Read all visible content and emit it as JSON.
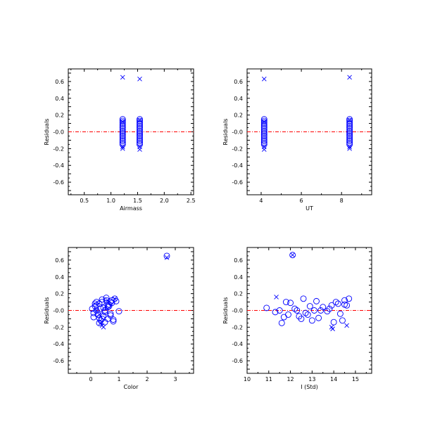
{
  "colors": {
    "points": "#0000ff",
    "zero_line": "#ff0000",
    "axes": "#000000",
    "background": "#ffffff"
  },
  "chart_data": [
    {
      "type": "scatter",
      "xlabel": "Airmass",
      "ylabel": "Residuals",
      "xlim": [
        0.2,
        2.55
      ],
      "ylim": [
        -0.75,
        0.75
      ],
      "xticks": [
        0.5,
        1.0,
        1.5,
        2.0,
        2.5
      ],
      "xtick_labels": [
        "0.5",
        "1.0",
        "1.5",
        "2.0",
        "2.5"
      ],
      "yticks": [
        -0.6,
        -0.4,
        -0.2,
        0.0,
        0.2,
        0.4,
        0.6
      ],
      "ytick_labels": [
        "-0.6",
        "-0.4",
        "-0.2",
        "-0.0",
        "0.2",
        "0.4",
        "0.6"
      ],
      "reference_line_y": 0.0,
      "series": [
        {
          "marker": "circle",
          "x": [
            1.22,
            1.22,
            1.22,
            1.22,
            1.22,
            1.22,
            1.22,
            1.22,
            1.22,
            1.22,
            1.22,
            1.22,
            1.22,
            1.22,
            1.22,
            1.22,
            1.54,
            1.54,
            1.54,
            1.54,
            1.54,
            1.54,
            1.54,
            1.54,
            1.54,
            1.54,
            1.54,
            1.54,
            1.54,
            1.54,
            1.54,
            1.54
          ],
          "y": [
            0.15,
            0.13,
            0.11,
            0.09,
            0.07,
            0.05,
            0.03,
            0.01,
            -0.01,
            -0.03,
            -0.05,
            -0.07,
            -0.09,
            -0.11,
            -0.13,
            -0.15,
            0.15,
            0.13,
            0.11,
            0.09,
            0.07,
            0.05,
            0.03,
            0.01,
            -0.01,
            -0.03,
            -0.05,
            -0.07,
            -0.09,
            -0.11,
            -0.13,
            -0.15
          ]
        },
        {
          "marker": "x",
          "x": [
            1.22,
            1.54,
            1.22,
            1.22,
            1.54,
            1.54,
            1.22,
            1.54
          ],
          "y": [
            0.65,
            0.63,
            -0.18,
            -0.2,
            -0.18,
            -0.21,
            0.12,
            0.14
          ]
        }
      ]
    },
    {
      "type": "scatter",
      "xlabel": "UT",
      "ylabel": "Residuals",
      "xlim": [
        3.3,
        9.5
      ],
      "ylim": [
        -0.75,
        0.75
      ],
      "xticks": [
        4,
        6,
        8
      ],
      "xtick_labels": [
        "4",
        "6",
        "8"
      ],
      "yticks": [
        -0.6,
        -0.4,
        -0.2,
        0.0,
        0.2,
        0.4,
        0.6
      ],
      "ytick_labels": [
        "-0.6",
        "-0.4",
        "-0.2",
        "-0.0",
        "0.2",
        "0.4",
        "0.6"
      ],
      "reference_line_y": 0.0,
      "series": [
        {
          "marker": "circle",
          "x": [
            4.15,
            4.15,
            4.15,
            4.15,
            4.15,
            4.15,
            4.15,
            4.15,
            4.15,
            4.15,
            4.15,
            4.15,
            4.15,
            4.15,
            4.15,
            4.15,
            8.4,
            8.4,
            8.4,
            8.4,
            8.4,
            8.4,
            8.4,
            8.4,
            8.4,
            8.4,
            8.4,
            8.4,
            8.4,
            8.4,
            8.4,
            8.4
          ],
          "y": [
            0.15,
            0.13,
            0.11,
            0.09,
            0.07,
            0.05,
            0.03,
            0.01,
            -0.01,
            -0.03,
            -0.05,
            -0.07,
            -0.09,
            -0.11,
            -0.13,
            -0.15,
            0.15,
            0.13,
            0.11,
            0.09,
            0.07,
            0.05,
            0.03,
            0.01,
            -0.01,
            -0.03,
            -0.05,
            -0.07,
            -0.09,
            -0.11,
            -0.13,
            -0.15
          ]
        },
        {
          "marker": "x",
          "x": [
            4.15,
            8.4,
            4.15,
            4.15,
            8.4,
            8.4,
            4.15,
            8.4
          ],
          "y": [
            0.63,
            0.65,
            -0.18,
            -0.21,
            -0.18,
            -0.2,
            0.12,
            0.14
          ]
        }
      ]
    },
    {
      "type": "scatter",
      "xlabel": "Color",
      "ylabel": "Residuals",
      "xlim": [
        -0.8,
        3.65
      ],
      "ylim": [
        -0.75,
        0.75
      ],
      "xticks": [
        0,
        1,
        2,
        3
      ],
      "xtick_labels": [
        "0",
        "1",
        "2",
        "3"
      ],
      "yticks": [
        -0.6,
        -0.4,
        -0.2,
        0.0,
        0.2,
        0.4,
        0.6
      ],
      "ytick_labels": [
        "-0.6",
        "-0.4",
        "-0.2",
        "-0.0",
        "0.2",
        "0.4",
        "0.6"
      ],
      "reference_line_y": 0.0,
      "series": [
        {
          "marker": "circle",
          "x": [
            0.05,
            0.1,
            0.15,
            0.2,
            0.25,
            0.3,
            0.35,
            0.4,
            0.45,
            0.5,
            0.55,
            0.6,
            0.65,
            0.7,
            0.75,
            0.8,
            0.85,
            0.9,
            1.0,
            0.1,
            0.2,
            0.3,
            0.4,
            0.5,
            0.6,
            0.7,
            0.8,
            0.15,
            0.25,
            0.35,
            0.45,
            0.55,
            0.65,
            0.75,
            0.3,
            0.5,
            0.7,
            0.2,
            0.4,
            0.6,
            2.7
          ],
          "y": [
            0.02,
            -0.08,
            0.05,
            0.0,
            -0.05,
            0.08,
            -0.12,
            0.1,
            0.03,
            -0.02,
            0.12,
            -0.1,
            0.07,
            -0.06,
            0.09,
            -0.13,
            0.14,
            0.11,
            -0.01,
            -0.03,
            0.06,
            -0.09,
            0.13,
            -0.14,
            0.04,
            0.1,
            -0.11,
            0.08,
            -0.05,
            0.02,
            -0.07,
            0.15,
            0.05,
            0.12,
            -0.15,
            0.0,
            -0.04,
            0.1,
            -0.1,
            0.06,
            0.65
          ]
        },
        {
          "marker": "x",
          "x": [
            0.2,
            0.3,
            0.4,
            0.45,
            0.6,
            0.85,
            2.7,
            0.35
          ],
          "y": [
            0.0,
            -0.05,
            -0.18,
            -0.2,
            0.12,
            0.14,
            0.63,
            -0.15
          ]
        }
      ]
    },
    {
      "type": "scatter",
      "xlabel": "I (Std)",
      "ylabel": "Residuals",
      "xlim": [
        10.0,
        15.75
      ],
      "ylim": [
        -0.75,
        0.75
      ],
      "xticks": [
        10,
        11,
        12,
        13,
        14,
        15
      ],
      "xtick_labels": [
        "10",
        "11",
        "12",
        "13",
        "14",
        "15"
      ],
      "yticks": [
        -0.6,
        -0.4,
        -0.2,
        0.0,
        0.2,
        0.4,
        0.6
      ],
      "ytick_labels": [
        "-0.6",
        "-0.4",
        "-0.2",
        "-0.0",
        "0.2",
        "0.4",
        "0.6"
      ],
      "reference_line_y": 0.0,
      "series": [
        {
          "marker": "circle",
          "x": [
            10.9,
            11.3,
            11.5,
            11.6,
            11.8,
            11.9,
            12.0,
            12.2,
            12.4,
            12.5,
            12.6,
            12.7,
            12.9,
            13.0,
            13.1,
            13.2,
            13.3,
            13.5,
            13.7,
            13.9,
            14.0,
            14.1,
            14.2,
            14.3,
            14.5,
            14.6,
            14.7,
            12.3,
            13.4,
            14.4,
            11.7,
            12.8,
            13.8,
            14.5,
            12.1
          ],
          "y": [
            0.03,
            -0.02,
            0.0,
            -0.15,
            0.1,
            -0.05,
            0.09,
            0.02,
            -0.07,
            -0.1,
            0.14,
            -0.03,
            0.05,
            -0.12,
            0.0,
            0.11,
            -0.09,
            0.04,
            -0.01,
            0.06,
            -0.14,
            0.1,
            0.08,
            -0.04,
            0.12,
            0.06,
            0.14,
            0.0,
            0.0,
            -0.12,
            -0.08,
            -0.05,
            0.02,
            0.07,
            0.66
          ]
        },
        {
          "marker": "x",
          "x": [
            11.35,
            12.1,
            13.9,
            14.6,
            13.95
          ],
          "y": [
            0.16,
            0.66,
            -0.2,
            -0.18,
            -0.22
          ]
        }
      ]
    }
  ]
}
